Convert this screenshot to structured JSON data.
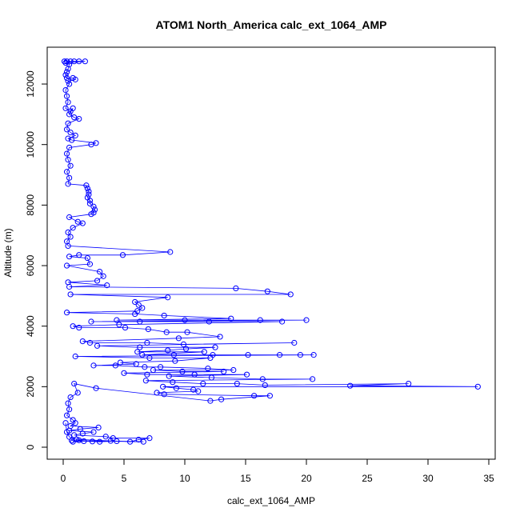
{
  "chart_data": {
    "type": "scatter",
    "title": "ATOM1 North_America calc_ext_1064_AMP",
    "xlabel": "calc_ext_1064_AMP",
    "ylabel": "Altitude (m)",
    "xlim": [
      0,
      35
    ],
    "ylim": [
      0,
      12700
    ],
    "x_ticks": [
      0,
      5,
      10,
      15,
      20,
      25,
      30,
      35
    ],
    "y_ticks": [
      0,
      2000,
      4000,
      6000,
      8000,
      10000,
      12000
    ],
    "grid": false,
    "legend": "none",
    "series": [
      {
        "color": "#0000ff",
        "marker": "open-circle",
        "connected": true,
        "points": [
          [
            0.1,
            12750
          ],
          [
            0.3,
            12750
          ],
          [
            0.6,
            12750
          ],
          [
            0.9,
            12750
          ],
          [
            1.3,
            12750
          ],
          [
            1.8,
            12750
          ],
          [
            0.2,
            12700
          ],
          [
            0.5,
            12650
          ],
          [
            0.4,
            12500
          ],
          [
            0.3,
            12400
          ],
          [
            0.2,
            12300
          ],
          [
            0.3,
            12200
          ],
          [
            0.8,
            12200
          ],
          [
            1.0,
            12150
          ],
          [
            0.4,
            12100
          ],
          [
            0.5,
            12000
          ],
          [
            0.2,
            11800
          ],
          [
            0.3,
            11600
          ],
          [
            0.4,
            11400
          ],
          [
            0.2,
            11200
          ],
          [
            0.6,
            11100
          ],
          [
            0.8,
            11200
          ],
          [
            0.5,
            11000
          ],
          [
            0.9,
            10900
          ],
          [
            1.3,
            10850
          ],
          [
            0.4,
            10700
          ],
          [
            0.3,
            10500
          ],
          [
            0.6,
            10400
          ],
          [
            1.0,
            10300
          ],
          [
            0.4,
            10200
          ],
          [
            0.7,
            10150
          ],
          [
            2.7,
            10050
          ],
          [
            2.3,
            10000
          ],
          [
            0.5,
            9900
          ],
          [
            0.3,
            9700
          ],
          [
            0.4,
            9500
          ],
          [
            0.6,
            9300
          ],
          [
            0.3,
            9100
          ],
          [
            0.5,
            8900
          ],
          [
            0.4,
            8700
          ],
          [
            1.9,
            8650
          ],
          [
            2.0,
            8550
          ],
          [
            2.1,
            8450
          ],
          [
            2.1,
            8350
          ],
          [
            2.0,
            8250
          ],
          [
            2.2,
            8150
          ],
          [
            2.2,
            8050
          ],
          [
            2.5,
            7950
          ],
          [
            2.6,
            7850
          ],
          [
            2.5,
            7750
          ],
          [
            2.3,
            7700
          ],
          [
            0.5,
            7600
          ],
          [
            1.2,
            7450
          ],
          [
            1.6,
            7400
          ],
          [
            0.8,
            7250
          ],
          [
            0.4,
            7100
          ],
          [
            0.6,
            6950
          ],
          [
            0.3,
            6800
          ],
          [
            0.4,
            6650
          ],
          [
            8.8,
            6450
          ],
          [
            4.9,
            6350
          ],
          [
            1.3,
            6350
          ],
          [
            0.5,
            6300
          ],
          [
            2.0,
            6250
          ],
          [
            2.2,
            6050
          ],
          [
            0.3,
            6000
          ],
          [
            3.0,
            5800
          ],
          [
            3.3,
            5650
          ],
          [
            2.8,
            5500
          ],
          [
            0.4,
            5450
          ],
          [
            3.6,
            5350
          ],
          [
            0.5,
            5300
          ],
          [
            14.2,
            5250
          ],
          [
            16.8,
            5150
          ],
          [
            18.7,
            5050
          ],
          [
            0.6,
            5050
          ],
          [
            8.6,
            4950
          ],
          [
            5.9,
            4800
          ],
          [
            6.2,
            4700
          ],
          [
            6.5,
            4600
          ],
          [
            6.1,
            4500
          ],
          [
            0.3,
            4450
          ],
          [
            5.9,
            4400
          ],
          [
            8.3,
            4350
          ],
          [
            13.8,
            4250
          ],
          [
            4.4,
            4200
          ],
          [
            10.0,
            4200
          ],
          [
            16.2,
            4200
          ],
          [
            20.0,
            4200
          ],
          [
            2.3,
            4150
          ],
          [
            6.3,
            4150
          ],
          [
            12.0,
            4150
          ],
          [
            18.0,
            4150
          ],
          [
            4.6,
            4050
          ],
          [
            0.8,
            4000
          ],
          [
            1.3,
            3950
          ],
          [
            5.1,
            3950
          ],
          [
            7.0,
            3900
          ],
          [
            8.5,
            3800
          ],
          [
            10.2,
            3800
          ],
          [
            12.9,
            3650
          ],
          [
            9.5,
            3600
          ],
          [
            1.6,
            3500
          ],
          [
            2.2,
            3450
          ],
          [
            6.9,
            3450
          ],
          [
            9.9,
            3400
          ],
          [
            19.0,
            3450
          ],
          [
            2.8,
            3350
          ],
          [
            6.3,
            3300
          ],
          [
            12.5,
            3300
          ],
          [
            10.1,
            3250
          ],
          [
            8.6,
            3200
          ],
          [
            6.1,
            3150
          ],
          [
            11.6,
            3150
          ],
          [
            6.5,
            3050
          ],
          [
            9.1,
            3050
          ],
          [
            12.3,
            3050
          ],
          [
            15.2,
            3050
          ],
          [
            17.8,
            3050
          ],
          [
            19.5,
            3050
          ],
          [
            20.6,
            3050
          ],
          [
            1.0,
            3000
          ],
          [
            7.1,
            2950
          ],
          [
            12.1,
            2950
          ],
          [
            9.2,
            2850
          ],
          [
            4.7,
            2800
          ],
          [
            6.0,
            2750
          ],
          [
            2.5,
            2700
          ],
          [
            4.3,
            2700
          ],
          [
            6.7,
            2650
          ],
          [
            8.0,
            2650
          ],
          [
            11.9,
            2600
          ],
          [
            14.0,
            2550
          ],
          [
            7.4,
            2550
          ],
          [
            9.8,
            2500
          ],
          [
            13.2,
            2500
          ],
          [
            5.0,
            2450
          ],
          [
            6.9,
            2400
          ],
          [
            10.8,
            2400
          ],
          [
            15.1,
            2400
          ],
          [
            8.7,
            2350
          ],
          [
            12.2,
            2300
          ],
          [
            16.4,
            2250
          ],
          [
            20.5,
            2250
          ],
          [
            6.8,
            2200
          ],
          [
            9.0,
            2150
          ],
          [
            11.5,
            2100
          ],
          [
            14.3,
            2100
          ],
          [
            16.6,
            2050
          ],
          [
            28.4,
            2100
          ],
          [
            23.6,
            2030
          ],
          [
            34.1,
            2000
          ],
          [
            8.2,
            2000
          ],
          [
            9.3,
            1950
          ],
          [
            10.7,
            1900
          ],
          [
            11.1,
            1850
          ],
          [
            7.7,
            1800
          ],
          [
            8.3,
            1750
          ],
          [
            15.7,
            1700
          ],
          [
            17.0,
            1700
          ],
          [
            13.0,
            1580
          ],
          [
            12.1,
            1530
          ],
          [
            2.7,
            1950
          ],
          [
            0.9,
            2100
          ],
          [
            1.2,
            1800
          ],
          [
            0.6,
            1650
          ],
          [
            0.4,
            1450
          ],
          [
            0.5,
            1250
          ],
          [
            0.3,
            1050
          ],
          [
            0.8,
            900
          ],
          [
            1.0,
            800
          ],
          [
            0.6,
            700
          ],
          [
            2.9,
            650
          ],
          [
            1.4,
            600
          ],
          [
            0.5,
            550
          ],
          [
            2.5,
            500
          ],
          [
            1.6,
            450
          ],
          [
            0.9,
            400
          ],
          [
            3.5,
            350
          ],
          [
            4.1,
            300
          ],
          [
            7.1,
            300
          ],
          [
            6.2,
            250
          ],
          [
            5.5,
            180
          ],
          [
            4.4,
            200
          ],
          [
            3.0,
            180
          ],
          [
            1.7,
            200
          ],
          [
            0.8,
            180
          ],
          [
            1.3,
            230
          ],
          [
            2.4,
            190
          ],
          [
            0.7,
            220
          ],
          [
            6.6,
            180
          ],
          [
            3.9,
            210
          ],
          [
            1.1,
            260
          ],
          [
            0.5,
            340
          ],
          [
            0.3,
            500
          ],
          [
            0.2,
            800
          ]
        ]
      }
    ]
  }
}
